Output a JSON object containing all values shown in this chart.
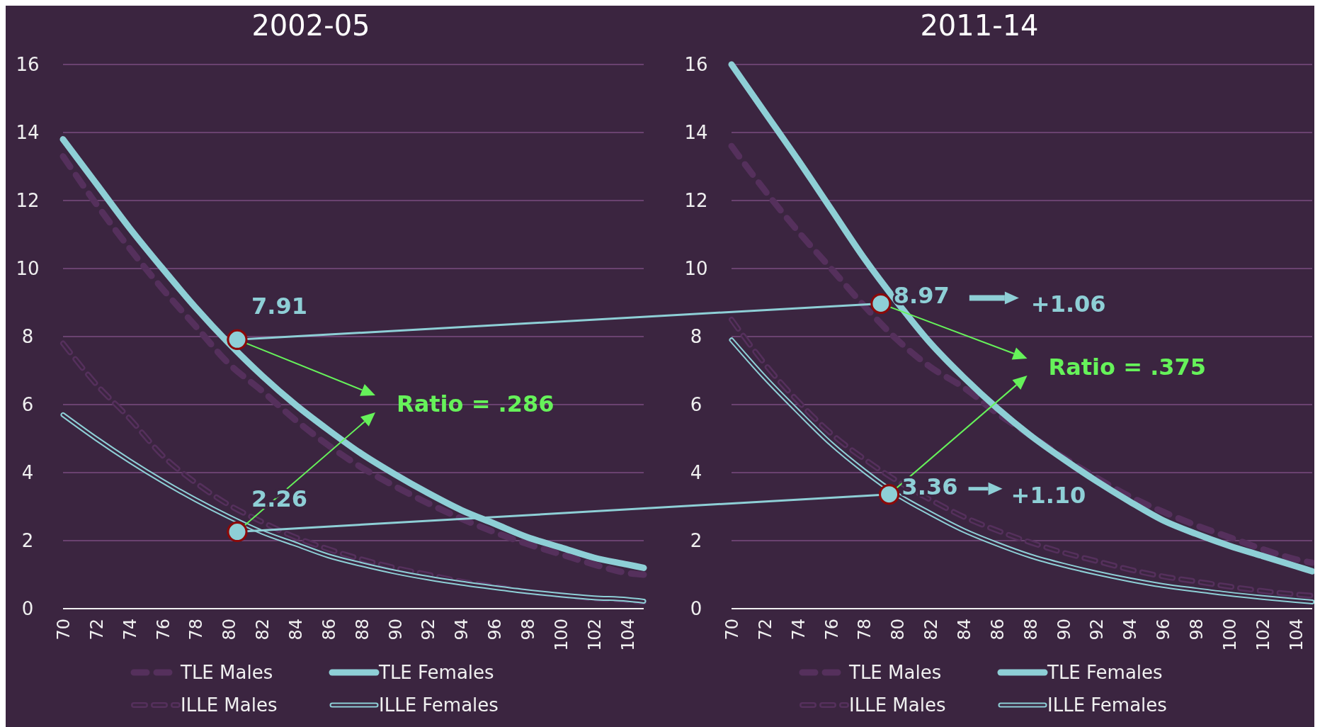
{
  "chart_data": [
    {
      "type": "line",
      "title": "2002-05",
      "x": [
        70,
        72,
        74,
        76,
        78,
        80,
        82,
        84,
        86,
        88,
        90,
        92,
        94,
        96,
        98,
        100,
        102,
        104,
        105
      ],
      "xlim": [
        70,
        105
      ],
      "xticks": [
        70,
        72,
        74,
        76,
        78,
        80,
        82,
        84,
        86,
        88,
        90,
        92,
        94,
        96,
        98,
        100,
        102,
        104
      ],
      "ylim": [
        0,
        16
      ],
      "yticks": [
        0,
        2,
        4,
        6,
        8,
        10,
        12,
        14,
        16
      ],
      "grid": "y",
      "legend": "bottom",
      "series": [
        {
          "name": "TLE Males",
          "color": "#55305c",
          "line_style": "dashed",
          "values": [
            13.3,
            11.9,
            10.6,
            9.4,
            8.3,
            7.2,
            6.4,
            5.55,
            4.8,
            4.15,
            3.6,
            3.1,
            2.65,
            2.25,
            1.9,
            1.6,
            1.3,
            1.05,
            1.0
          ]
        },
        {
          "name": "TLE Females",
          "color": "#8ecfd6",
          "line_style": "solid",
          "values": [
            13.8,
            12.5,
            11.2,
            10.0,
            8.85,
            7.8,
            6.85,
            6.0,
            5.25,
            4.55,
            3.95,
            3.4,
            2.9,
            2.5,
            2.1,
            1.8,
            1.5,
            1.3,
            1.2
          ]
        },
        {
          "name": "ILLE Males",
          "color": "#55305c",
          "line_style": "dashed",
          "values": [
            7.8,
            6.6,
            5.6,
            4.5,
            3.7,
            3.05,
            2.55,
            2.1,
            1.75,
            1.45,
            1.2,
            1.0,
            0.8,
            0.65,
            0.5,
            0.4,
            0.3,
            0.25,
            0.2
          ]
        },
        {
          "name": "ILLE Females",
          "color": "#8ecfd6",
          "line_style": "solid",
          "values": [
            5.7,
            5.0,
            4.35,
            3.75,
            3.2,
            2.7,
            2.25,
            1.9,
            1.55,
            1.3,
            1.08,
            0.9,
            0.75,
            0.62,
            0.5,
            0.4,
            0.32,
            0.27,
            0.22
          ]
        },
        {
          "type": "scatter",
          "color": "#8ecfd6",
          "x": [
            80.5,
            80.5
          ],
          "values": [
            7.91,
            2.26
          ],
          "value_labels": [
            "7.91",
            "2.26"
          ]
        }
      ],
      "annotations": [
        "Ratio = .286"
      ]
    },
    {
      "type": "line",
      "title": "2011-14",
      "x": [
        70,
        72,
        74,
        76,
        78,
        80,
        82,
        84,
        86,
        88,
        90,
        92,
        94,
        96,
        98,
        100,
        102,
        104,
        105
      ],
      "xlim": [
        70,
        105
      ],
      "xticks": [
        70,
        72,
        74,
        76,
        78,
        80,
        82,
        84,
        86,
        88,
        90,
        92,
        94,
        96,
        98,
        100,
        102,
        104
      ],
      "ylim": [
        0,
        16
      ],
      "yticks": [
        0,
        2,
        4,
        6,
        8,
        10,
        12,
        14,
        16
      ],
      "grid": "y",
      "legend": "bottom",
      "series": [
        {
          "name": "TLE Males",
          "color": "#55305c",
          "line_style": "dashed",
          "values": [
            13.6,
            12.3,
            11.1,
            10.0,
            8.9,
            7.9,
            7.1,
            6.5,
            5.75,
            5.1,
            4.45,
            3.85,
            3.3,
            2.85,
            2.45,
            2.1,
            1.75,
            1.45,
            1.35
          ]
        },
        {
          "name": "TLE Females",
          "color": "#8ecfd6",
          "line_style": "solid",
          "values": [
            16.0,
            14.6,
            13.2,
            11.75,
            10.3,
            9.0,
            7.8,
            6.8,
            5.9,
            5.1,
            4.4,
            3.75,
            3.15,
            2.6,
            2.2,
            1.85,
            1.55,
            1.25,
            1.1
          ]
        },
        {
          "name": "ILLE Males",
          "color": "#55305c",
          "line_style": "dashed",
          "values": [
            8.5,
            7.2,
            6.1,
            5.15,
            4.4,
            3.75,
            3.2,
            2.7,
            2.3,
            1.95,
            1.65,
            1.4,
            1.15,
            0.95,
            0.8,
            0.65,
            0.52,
            0.42,
            0.38
          ]
        },
        {
          "name": "ILLE Females",
          "color": "#8ecfd6",
          "line_style": "solid",
          "values": [
            7.9,
            6.8,
            5.8,
            4.85,
            4.05,
            3.35,
            2.8,
            2.3,
            1.9,
            1.55,
            1.28,
            1.05,
            0.85,
            0.68,
            0.55,
            0.43,
            0.33,
            0.24,
            0.2
          ]
        },
        {
          "type": "scatter",
          "color": "#8ecfd6",
          "x": [
            79,
            79.5
          ],
          "values": [
            8.97,
            3.36
          ],
          "value_labels": [
            "8.97",
            "3.36"
          ]
        }
      ],
      "annotations": [
        "Ratio = .375",
        "+1.06",
        "+1.10"
      ]
    }
  ]
}
